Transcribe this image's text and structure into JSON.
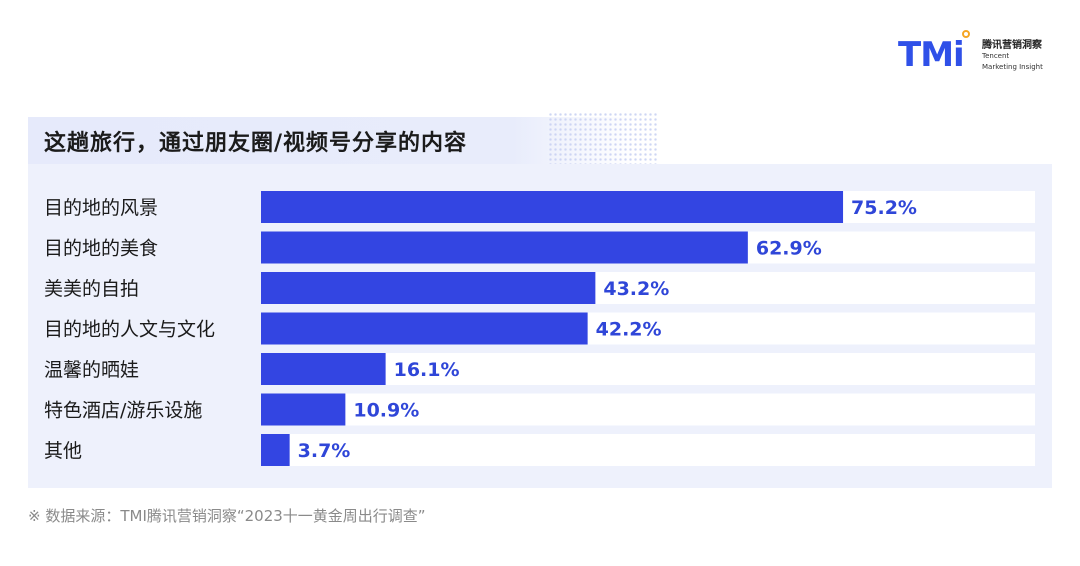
{
  "logo": {
    "mark": "TMi",
    "name_cn": "腾讯营销洞察",
    "name_en_line1": "Tencent",
    "name_en_line2": "Marketing Insight"
  },
  "footnote": "※ 数据来源：TMI腾讯营销洞察“2023十一黄金周出行调查”",
  "colors": {
    "bar": "#3345e2",
    "track": "#ffffff",
    "panel": "#eef1fc",
    "value_label": "#2f46d8"
  },
  "chart_data": {
    "type": "bar",
    "orientation": "horizontal",
    "title": "这趟旅行，通过朋友圈/视频号分享的内容",
    "categories": [
      "目的地的风景",
      "目的地的美食",
      "美美的自拍",
      "目的地的人文与文化",
      "温馨的晒娃",
      "特色酒店/游乐设施",
      "其他"
    ],
    "values": [
      75.2,
      62.9,
      43.2,
      42.2,
      16.1,
      10.9,
      3.7
    ],
    "value_labels": [
      "75.2%",
      "62.9%",
      "43.2%",
      "42.2%",
      "16.1%",
      "10.9%",
      "3.7%"
    ],
    "unit": "%",
    "xlim": [
      0,
      100
    ],
    "grid": false,
    "legend": "none"
  }
}
